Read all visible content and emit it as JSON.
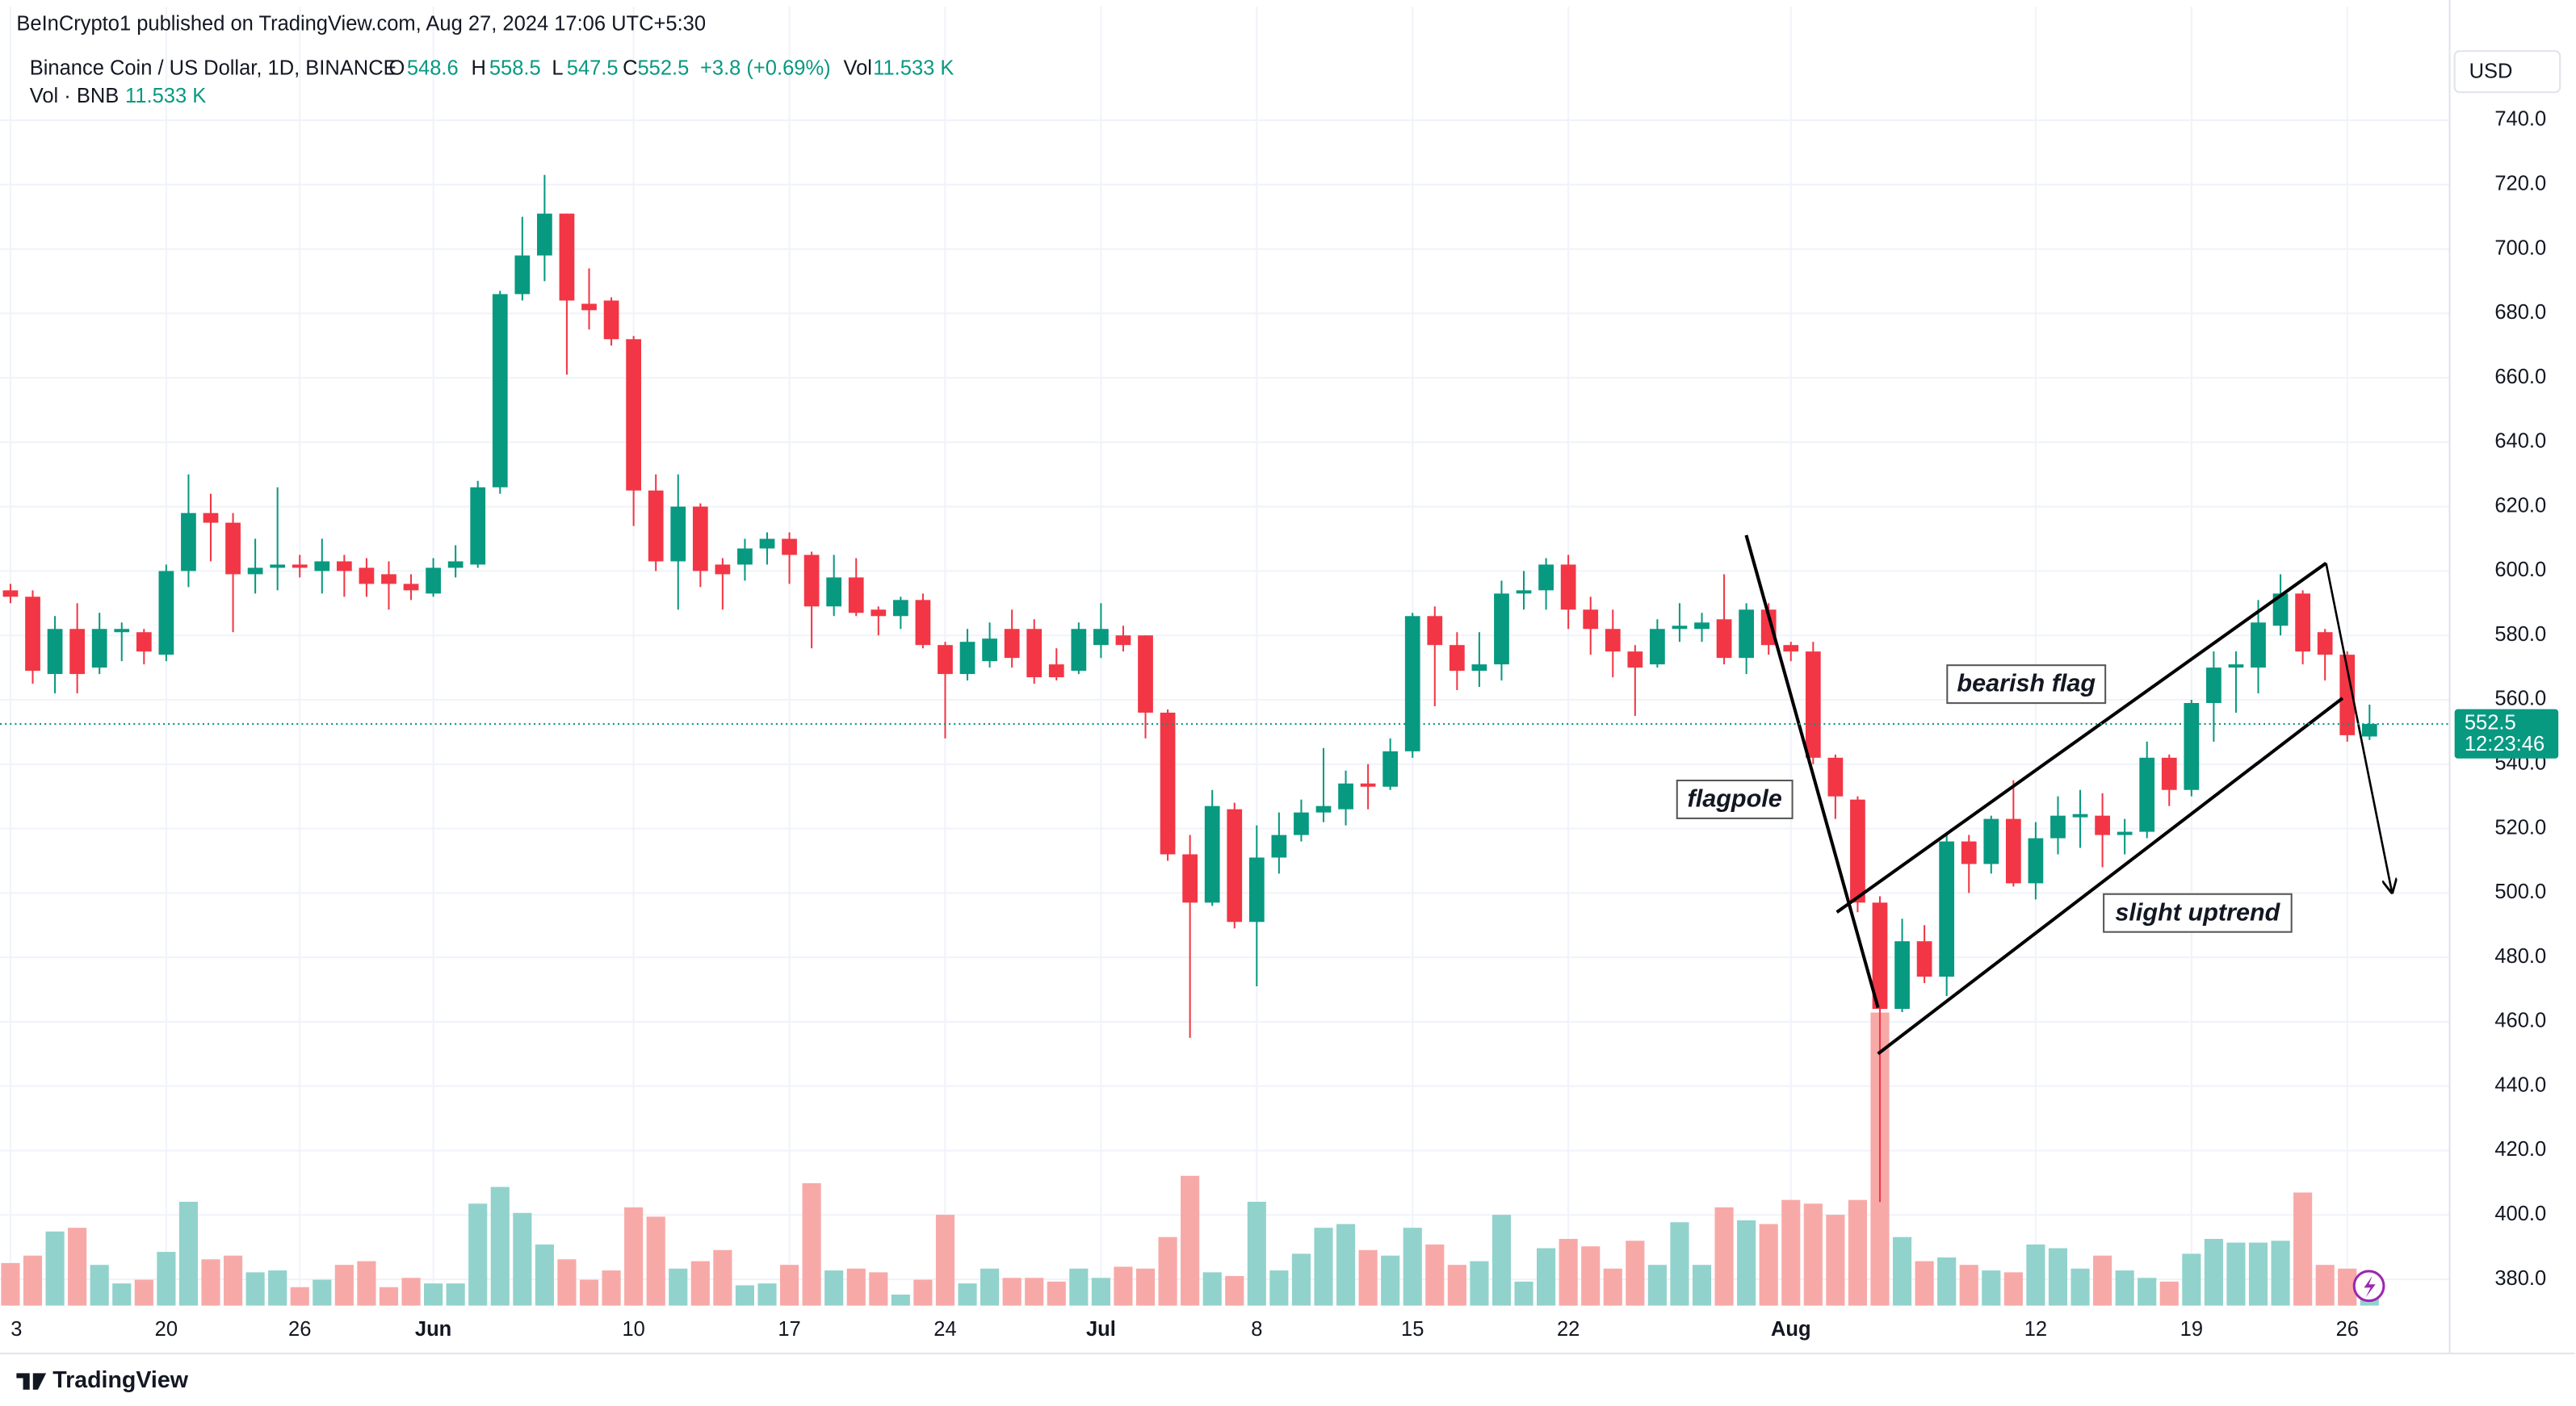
{
  "header": {
    "published": "BeInCrypto1 published on TradingView.com, Aug 27, 2024 17:06 UTC+5:30"
  },
  "legend": {
    "symbol": "Binance Coin / US Dollar, 1D, BINANCE",
    "ohlc": [
      {
        "key": "O",
        "value": 548.6
      },
      {
        "key": "H",
        "value": 558.5
      },
      {
        "key": "L",
        "value": 547.5
      },
      {
        "key": "C",
        "value": 552.5
      }
    ],
    "change": "+3.8 (+0.69%)",
    "vol_key": "Vol",
    "vol_value": "11.533 K",
    "vol_line": "Vol · BNB",
    "vol_line_value": "11.533 K"
  },
  "currency": "USD",
  "countdown": "12:23:46",
  "annotations": [
    "bearish flag",
    "flagpole",
    "slight uptrend"
  ],
  "footer": "TradingView",
  "chart_data": {
    "type": "candlestick",
    "up_color": "#089981",
    "down_color": "#f23645",
    "up_volume_color": "#92d2cc",
    "down_volume_color": "#f7a9a8",
    "grid": true,
    "xlim": [
      -0.47,
      109.6
    ],
    "ylim": [
      371.8,
      775.3
    ],
    "volume_ylim": [
      0,
      700
    ],
    "xticks": [
      {
        "value": 0,
        "label": "3"
      },
      {
        "value": 7,
        "label": "20"
      },
      {
        "value": 13,
        "label": "26"
      },
      {
        "value": 19,
        "label": "Jun"
      },
      {
        "value": 28,
        "label": "10"
      },
      {
        "value": 35,
        "label": "17"
      },
      {
        "value": 42,
        "label": "24"
      },
      {
        "value": 49,
        "label": "Jul"
      },
      {
        "value": 56,
        "label": "8"
      },
      {
        "value": 63,
        "label": "15"
      },
      {
        "value": 70,
        "label": "22"
      },
      {
        "value": 80,
        "label": "Aug"
      },
      {
        "value": 91,
        "label": "12"
      },
      {
        "value": 98,
        "label": "19"
      },
      {
        "value": 105,
        "label": "26"
      }
    ],
    "yticks": [
      {
        "value": 380,
        "label": "380.0"
      },
      {
        "value": 400,
        "label": "400.0"
      },
      {
        "value": 420,
        "label": "420.0"
      },
      {
        "value": 440,
        "label": "440.0"
      },
      {
        "value": 460,
        "label": "460.0"
      },
      {
        "value": 480,
        "label": "480.0"
      },
      {
        "value": 500,
        "label": "500.0"
      },
      {
        "value": 520,
        "label": "520.0"
      },
      {
        "value": 540,
        "label": "540.0"
      },
      {
        "value": 560,
        "label": "560.0"
      },
      {
        "value": 580,
        "label": "580.0"
      },
      {
        "value": 600,
        "label": "600.0"
      },
      {
        "value": 620,
        "label": "620.0"
      },
      {
        "value": 640,
        "label": "640.0"
      },
      {
        "value": 660,
        "label": "660.0"
      },
      {
        "value": 680,
        "label": "680.0"
      },
      {
        "value": 700,
        "label": "700.0"
      },
      {
        "value": 720,
        "label": "720.0"
      },
      {
        "value": 740,
        "label": "740.0"
      }
    ],
    "open": [
      594,
      592,
      568,
      582,
      570,
      581,
      581,
      574,
      600,
      618,
      615,
      599,
      601,
      602,
      600,
      603,
      601,
      599,
      596,
      593,
      601,
      602,
      626,
      686,
      698,
      711,
      683,
      684,
      672,
      625,
      603,
      620,
      602,
      602,
      607,
      610,
      605,
      589,
      598,
      588,
      586,
      591,
      577,
      568,
      572,
      582,
      582,
      571,
      569,
      577,
      580,
      580,
      556,
      512,
      497,
      526,
      491,
      511,
      518,
      525,
      526,
      534,
      533,
      544,
      586,
      577,
      569,
      571,
      593,
      594,
      602,
      588,
      582,
      575,
      571,
      582,
      582,
      585,
      573,
      588,
      577,
      575,
      542,
      529,
      497,
      464,
      485,
      474,
      516,
      509,
      523,
      503,
      517,
      523.5,
      524,
      518,
      519,
      542,
      532,
      559,
      570,
      570,
      583,
      593,
      581,
      574,
      548.6
    ],
    "high": [
      596,
      594,
      586,
      590,
      587,
      584,
      582,
      602,
      630,
      624,
      618,
      610,
      626,
      605,
      610,
      605,
      604,
      603,
      599,
      604,
      608,
      628,
      687,
      710,
      723,
      711,
      694,
      685,
      673,
      630,
      630,
      621,
      604,
      610,
      612,
      612,
      606,
      605,
      604,
      589,
      592,
      593,
      578,
      582,
      584,
      588,
      585,
      576,
      584,
      590,
      583,
      580,
      557,
      518,
      532,
      528,
      521,
      525,
      529,
      545,
      538,
      540,
      548,
      587,
      589,
      581,
      581,
      597,
      600,
      604,
      605,
      592,
      588,
      577,
      585,
      590,
      587,
      599,
      590,
      590,
      578,
      578,
      543,
      530,
      499,
      492,
      490,
      518,
      518,
      524,
      535,
      522,
      530,
      532,
      531,
      523,
      547,
      543,
      560,
      575,
      575,
      591,
      599,
      594,
      582,
      575,
      558.5
    ],
    "low": [
      590,
      565,
      562,
      562,
      568,
      572,
      571,
      572,
      595,
      603,
      581,
      593,
      594,
      598,
      593,
      592,
      592,
      588,
      591,
      592,
      598,
      601,
      624,
      684,
      690,
      661,
      675,
      670,
      614,
      600,
      588,
      595,
      588,
      597,
      602,
      596,
      576,
      586,
      586,
      580,
      582,
      576,
      548,
      566,
      570,
      570,
      565,
      566,
      568,
      573,
      575,
      548,
      510,
      455,
      496,
      489,
      471,
      506,
      516,
      522,
      521,
      526,
      532,
      542,
      558,
      563,
      564,
      566,
      588,
      588,
      582,
      574,
      567,
      555,
      570,
      578,
      578,
      571,
      568,
      574,
      572,
      540,
      523,
      494,
      404,
      463,
      472,
      468,
      500,
      506,
      502,
      498,
      512,
      514,
      508,
      512,
      517,
      527,
      530,
      547,
      556,
      562,
      580,
      571,
      566,
      547,
      547.5
    ],
    "close": [
      592,
      569,
      582,
      568,
      582,
      582,
      575,
      600,
      618,
      615,
      599,
      601,
      602,
      601,
      603,
      600,
      596,
      596,
      594,
      601,
      603,
      626,
      686,
      698,
      711,
      684,
      681,
      672,
      625,
      603,
      620,
      600,
      599,
      607,
      610,
      605,
      589,
      598,
      587,
      586,
      591,
      577,
      568,
      578,
      579,
      573,
      567,
      567,
      582,
      582,
      577,
      556,
      512,
      497,
      527,
      491,
      511,
      518,
      525,
      527,
      534,
      533,
      544,
      586,
      577,
      569,
      571,
      593,
      594,
      602,
      588,
      582,
      575,
      570,
      582,
      583,
      584,
      573,
      588,
      577,
      575,
      542,
      530,
      497,
      464,
      485,
      474,
      516,
      509,
      523,
      503,
      517,
      524,
      524.5,
      518,
      519,
      542,
      532,
      559,
      570,
      571,
      584,
      593,
      575,
      574,
      549,
      552.5
    ],
    "volume": [
      23,
      27,
      40,
      42,
      22,
      12,
      14,
      29,
      56,
      25,
      27,
      18,
      19,
      10,
      14,
      22,
      24,
      10,
      15,
      12,
      12,
      55,
      64,
      50,
      33,
      25,
      14,
      19,
      53,
      48,
      20,
      24,
      30,
      11,
      12,
      22,
      66,
      19,
      20,
      18,
      6,
      14,
      49,
      12,
      20,
      15,
      15,
      13,
      20,
      15,
      21,
      20,
      37,
      70,
      18,
      16,
      56,
      19,
      28,
      42,
      44,
      30,
      27,
      42,
      33,
      22,
      24,
      49,
      13,
      31,
      36,
      32,
      20,
      35,
      22,
      45,
      22,
      53,
      46,
      44,
      57,
      55,
      49,
      57,
      158,
      37,
      24,
      26,
      22,
      19,
      18,
      33,
      31,
      20,
      27,
      19,
      15,
      13,
      28,
      36,
      34,
      34,
      35,
      61,
      22,
      20,
      11.533
    ]
  }
}
